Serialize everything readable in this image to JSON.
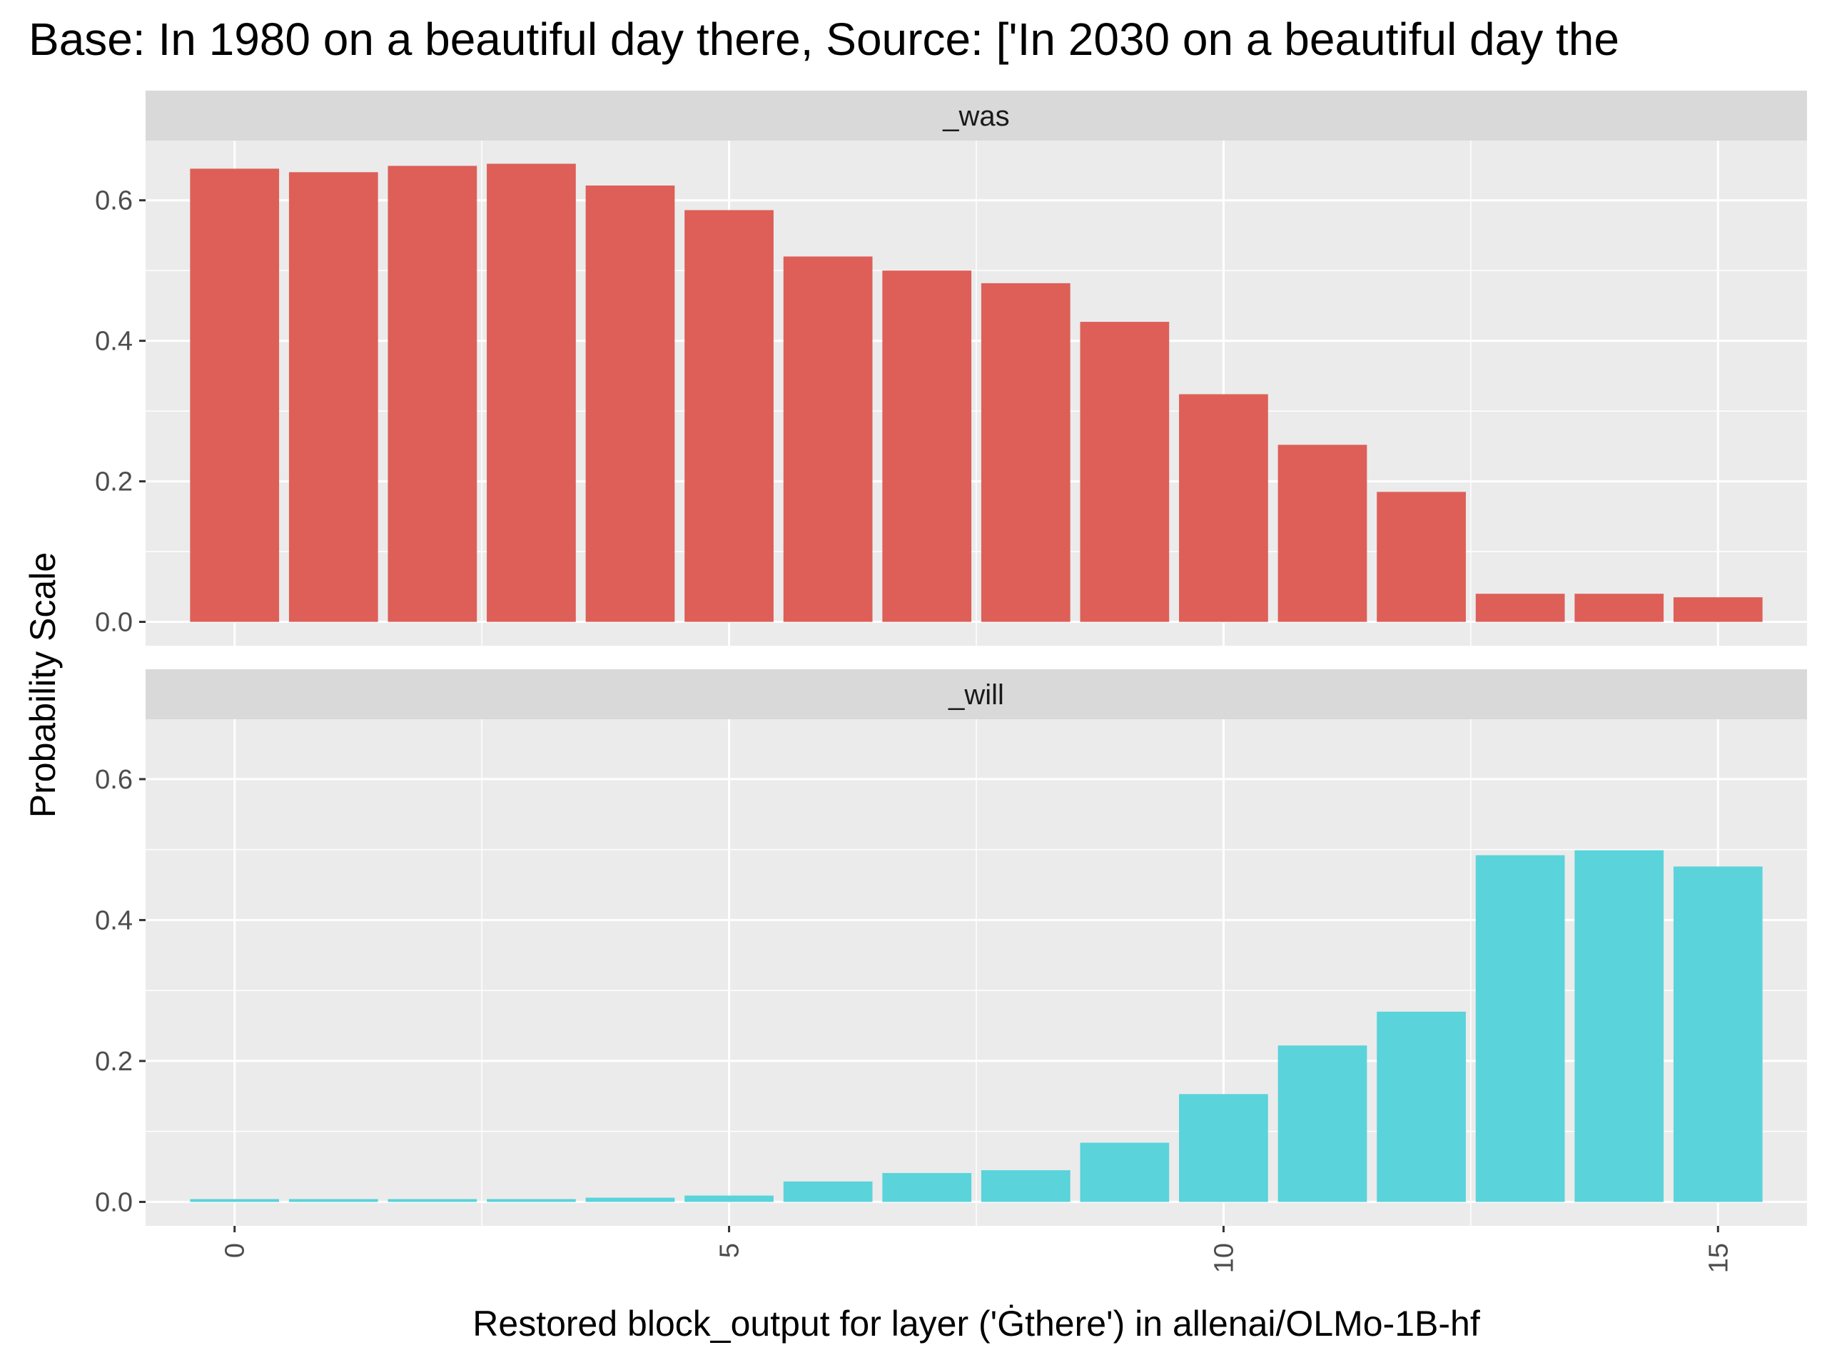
{
  "title": "Base: In 1980 on a beautiful day there, Source: ['In 2030 on a beautiful day the",
  "chart_data": {
    "type": "bar",
    "xlabel": "Restored block_output for layer ('Ġthere') in allenai/OLMo-1B-hf",
    "ylabel": "Probability Scale",
    "x": [
      0,
      1,
      2,
      3,
      4,
      5,
      6,
      7,
      8,
      9,
      10,
      11,
      12,
      13,
      14,
      15
    ],
    "xticks": [
      0,
      5,
      10,
      15
    ],
    "yticks": [
      0.0,
      0.2,
      0.4,
      0.6
    ],
    "ytick_labels": [
      "0.0",
      "0.2",
      "0.4",
      "0.6"
    ],
    "xlim": [
      -0.9,
      15.9
    ],
    "ylim": [
      -0.034,
      0.685
    ],
    "grid": true,
    "legend": "none",
    "series": [
      {
        "name": "_was",
        "color": "#DD5F58",
        "values": [
          0.645,
          0.64,
          0.649,
          0.652,
          0.621,
          0.586,
          0.52,
          0.5,
          0.482,
          0.427,
          0.324,
          0.252,
          0.185,
          0.04,
          0.04,
          0.035
        ]
      },
      {
        "name": "_will",
        "color": "#5AD3DA",
        "values": [
          0.004,
          0.004,
          0.004,
          0.004,
          0.006,
          0.009,
          0.029,
          0.041,
          0.045,
          0.084,
          0.153,
          0.222,
          0.27,
          0.492,
          0.499,
          0.476
        ]
      }
    ]
  }
}
